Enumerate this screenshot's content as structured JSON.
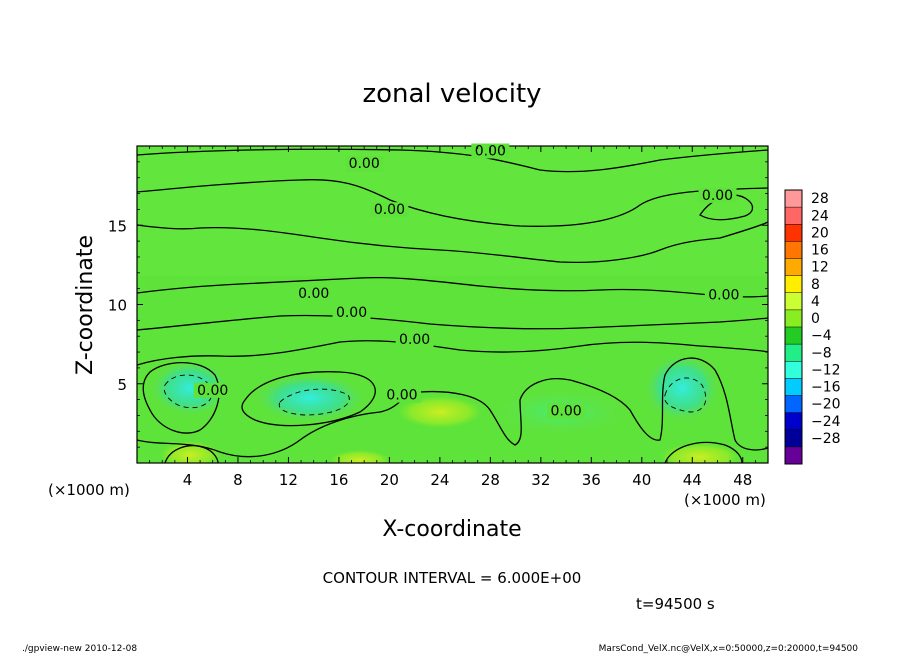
{
  "chart_data": {
    "type": "heatmap",
    "title": "zonal velocity",
    "xlabel": "X-coordinate",
    "ylabel": "Z-coordinate",
    "x_unit_left": "(×1000 m)",
    "x_unit_right": "(×1000 m)",
    "xlim": [
      0,
      50
    ],
    "ylim": [
      0,
      20
    ],
    "x_ticks": [
      4,
      8,
      12,
      16,
      20,
      24,
      28,
      32,
      36,
      40,
      44,
      48
    ],
    "y_ticks": [
      5,
      10,
      15
    ],
    "colorbar_levels": [
      28,
      24,
      20,
      16,
      12,
      8,
      4,
      0,
      -4,
      -8,
      -12,
      -16,
      -20,
      -24,
      -28
    ],
    "colorbar_colors": [
      "#ff9999",
      "#ff6666",
      "#ff3300",
      "#ff7700",
      "#ffaa00",
      "#ffee00",
      "#ccff33",
      "#88ee22",
      "#22cc22",
      "#22ee88",
      "#33ffdd",
      "#00ccff",
      "#0066ff",
      "#0000cc",
      "#000099",
      "#660099"
    ],
    "contour_labels": [
      {
        "x": 18.0,
        "y": 18.6,
        "text": "0.00"
      },
      {
        "x": 28.0,
        "y": 19.4,
        "text": "0.00"
      },
      {
        "x": 20.0,
        "y": 15.7,
        "text": "0.00"
      },
      {
        "x": 46.0,
        "y": 16.6,
        "text": "0.00"
      },
      {
        "x": 14.0,
        "y": 10.4,
        "text": "0.00"
      },
      {
        "x": 46.5,
        "y": 10.3,
        "text": "0.00"
      },
      {
        "x": 17.0,
        "y": 9.2,
        "text": "0.00"
      },
      {
        "x": 22.0,
        "y": 7.5,
        "text": "0.00"
      },
      {
        "x": 6.0,
        "y": 4.3,
        "text": "0.00"
      },
      {
        "x": 21.0,
        "y": 4.0,
        "text": "0.00"
      },
      {
        "x": 34.0,
        "y": 3.0,
        "text": "0.00"
      }
    ],
    "contour_interval_text": "CONTOUR INTERVAL = 6.000E+00",
    "time_text": "t=94500 s",
    "grid": false
  },
  "footer": {
    "left": "./gpview-new  2010-12-08",
    "right": "MarsCond_VelX.nc@VelX,x=0:50000,z=0:20000,t=94500"
  }
}
